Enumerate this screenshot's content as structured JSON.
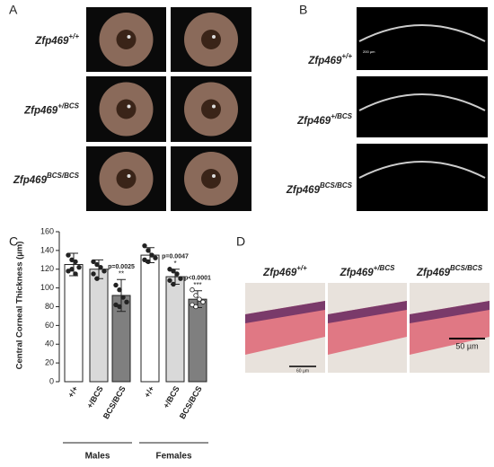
{
  "panel_a": {
    "label": "A",
    "rows": [
      {
        "gene": "Zfp469",
        "allele": "+/+"
      },
      {
        "gene": "Zfp469",
        "allele": "+/BCS"
      },
      {
        "gene": "Zfp469",
        "allele": "BCS/BCS"
      }
    ]
  },
  "panel_b": {
    "label": "B",
    "scale": "200 µm",
    "rows": [
      {
        "gene": "Zfp469",
        "allele": "+/+"
      },
      {
        "gene": "Zfp469",
        "allele": "+/BCS"
      },
      {
        "gene": "Zfp469",
        "allele": "BCS/BCS"
      }
    ]
  },
  "panel_d": {
    "label": "D",
    "scale_1": "60 µm",
    "scale_2": "50 µm",
    "columns": [
      {
        "gene": "Zfp469",
        "allele": "+/+"
      },
      {
        "gene": "Zfp469",
        "allele": "+/BCS"
      },
      {
        "gene": "Zfp469",
        "allele": "BCS/BCS"
      }
    ]
  },
  "chart_data": {
    "type": "bar",
    "panel_label": "C",
    "y_label": "Central Corneal Thickness (µm)",
    "categories": [
      "+/+",
      "+/BCS",
      "BCS/BCS",
      "+/+",
      "+/BCS",
      "BCS/BCS"
    ],
    "groups": [
      "Males",
      "Females"
    ],
    "values": [
      125,
      120,
      92,
      135,
      112,
      88
    ],
    "errors": [
      12,
      10,
      17,
      8,
      8,
      9
    ],
    "colors": [
      "#ffffff",
      "#d9d9d9",
      "#7f7f7f",
      "#ffffff",
      "#d9d9d9",
      "#7f7f7f"
    ],
    "points": [
      [
        135,
        130,
        128,
        122,
        118,
        120,
        115
      ],
      [
        128,
        125,
        122,
        118,
        115,
        110
      ],
      [
        103,
        98,
        90,
        85,
        82,
        80
      ],
      [
        145,
        140,
        135,
        132,
        130,
        128
      ],
      [
        120,
        118,
        115,
        110,
        108,
        104
      ],
      [
        98,
        92,
        88,
        85,
        82,
        80
      ]
    ],
    "p_labels": [
      null,
      null,
      "p=0.0025",
      null,
      "p=0.0047",
      "p<0.0001"
    ],
    "stars": [
      null,
      null,
      "**",
      null,
      "*",
      "***"
    ],
    "ylim": [
      0,
      160
    ],
    "yticks": [
      0,
      20,
      40,
      60,
      80,
      100,
      120,
      140,
      160
    ]
  }
}
